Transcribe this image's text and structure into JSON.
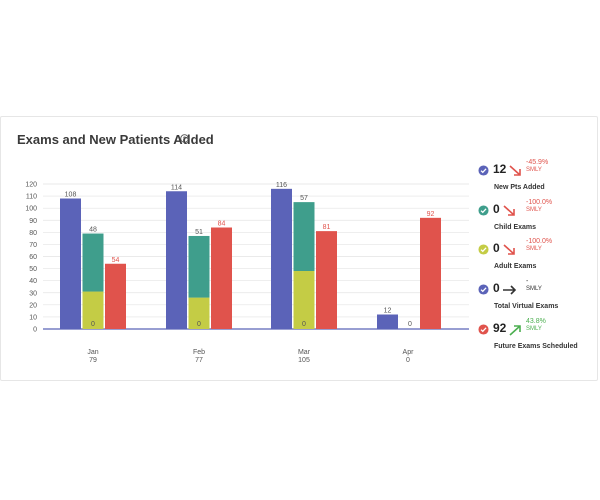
{
  "title": "Exams and New Patients Added",
  "colors": {
    "blue": "#5b63b8",
    "teal": "#3f9e8c",
    "yellow": "#c4cc45",
    "red": "#e0534c",
    "neg": "#e0534c",
    "pos": "#4caf50",
    "neutral": "#333333"
  },
  "chart_data": {
    "type": "bar",
    "title": "Exams and New Patients Added",
    "categories": [
      "Jan",
      "Feb",
      "Mar",
      "Apr"
    ],
    "category_sublabels": [
      "79",
      "77",
      "105",
      "0"
    ],
    "ylim": [
      0,
      120
    ],
    "yticks": [
      0,
      10,
      20,
      30,
      40,
      50,
      60,
      70,
      80,
      90,
      100,
      110,
      120
    ],
    "grid": true,
    "series": [
      {
        "key": "blue",
        "values": [
          108,
          114,
          116,
          12
        ],
        "labels": [
          "108",
          "114",
          "116",
          "12"
        ]
      },
      {
        "key": "teal",
        "values": [
          48,
          51,
          57,
          0
        ],
        "labels": [
          "48",
          "51",
          "57",
          "0"
        ],
        "stacked_on": "yellow"
      },
      {
        "key": "yellow",
        "values": [
          31,
          26,
          48,
          0
        ],
        "labels": [
          "31",
          "26",
          "48",
          "0"
        ]
      },
      {
        "key": "red",
        "values": [
          54,
          84,
          81,
          92
        ],
        "labels": [
          "54",
          "84",
          "81",
          "92"
        ]
      }
    ],
    "baseline_labels": [
      "0",
      "0",
      "0",
      ""
    ]
  },
  "metrics": [
    {
      "value": "12",
      "change": "-45.9%",
      "smly": "SMLY",
      "label": "New Pts Added",
      "check_color": "#5b63b8",
      "direction": "down"
    },
    {
      "value": "0",
      "change": "-100.0%",
      "smly": "SMLY",
      "label": "Child Exams",
      "check_color": "#3f9e8c",
      "direction": "down"
    },
    {
      "value": "0",
      "change": "-100.0%",
      "smly": "SMLY",
      "label": "Adult Exams",
      "check_color": "#c4cc45",
      "direction": "down"
    },
    {
      "value": "0",
      "change": "-",
      "smly": "SMLY",
      "label": "Total Virtual Exams",
      "check_color": "#5b63b8",
      "direction": "flat"
    },
    {
      "value": "92",
      "change": "43.8%",
      "smly": "SMLY",
      "label": "Future Exams Scheduled",
      "check_color": "#e0534c",
      "direction": "up"
    }
  ]
}
